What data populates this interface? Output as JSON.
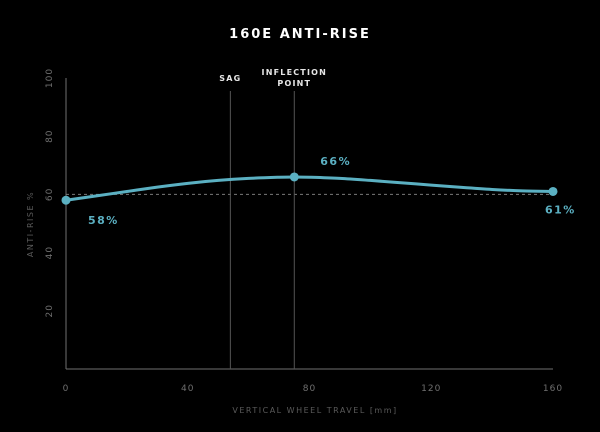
{
  "chart_data": {
    "type": "line",
    "title": "160E ANTI-RISE",
    "xlabel": "VERTICAL WHEEL TRAVEL [mm]",
    "ylabel": "ANTI-RISE %",
    "xlim": [
      0,
      160
    ],
    "ylim": [
      0,
      100
    ],
    "x_ticks": [
      "0",
      "40",
      "80",
      "120",
      "160"
    ],
    "y_ticks": [
      "20",
      "40",
      "60",
      "80",
      "100"
    ],
    "series": [
      {
        "color": "#5bb0c2",
        "x": [
          0,
          10,
          20,
          30,
          40,
          50,
          60,
          70,
          75,
          80,
          90,
          100,
          110,
          120,
          130,
          140,
          150,
          160
        ],
        "y": [
          58,
          59.5,
          61,
          62.5,
          63.8,
          64.8,
          65.5,
          65.9,
          66,
          65.9,
          65.5,
          64.8,
          64,
          63.2,
          62.4,
          61.7,
          61.2,
          61
        ]
      }
    ],
    "reference_line": {
      "y": 60,
      "style": "dashed",
      "color": "#7a7a7a"
    },
    "markers": [
      {
        "label": "SAG",
        "x": 54
      },
      {
        "label_lines": [
          "INFLECTION",
          "POINT"
        ],
        "x": 75
      }
    ],
    "annotations": [
      {
        "text": "58%",
        "x": 0,
        "y": 58
      },
      {
        "text": "66%",
        "x": 75,
        "y": 66
      },
      {
        "text": "61%",
        "x": 160,
        "y": 61
      }
    ],
    "grid": false,
    "colors": {
      "background": "#000000",
      "line": "#5bb0c2",
      "axis": "#6f6f6f",
      "marker_line": "#555555"
    }
  }
}
